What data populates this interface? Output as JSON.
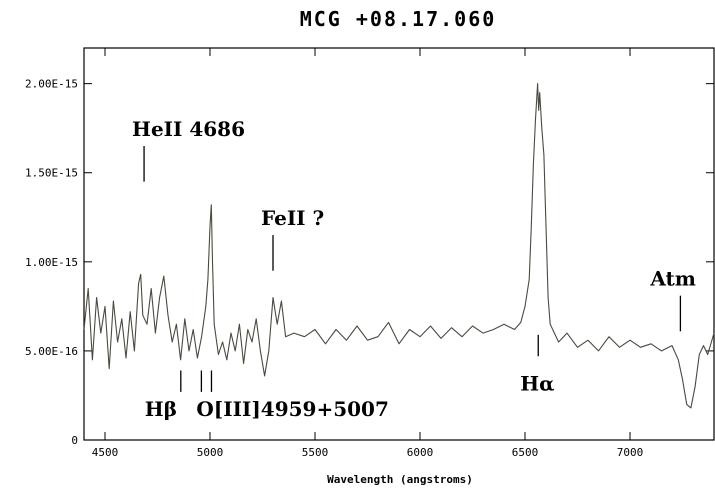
{
  "chart_data": {
    "type": "line",
    "title": "MCG +08.17.060",
    "xlabel": "Wavelength (angstroms)",
    "ylabel": "",
    "xlim": [
      4400,
      7400
    ],
    "ylim": [
      0,
      2.2e-15
    ],
    "x_ticks": [
      4500,
      5000,
      5500,
      6000,
      6500,
      7000
    ],
    "x_tick_labels": [
      "4500",
      "5000",
      "5500",
      "6000",
      "6500",
      "7000"
    ],
    "y_ticks": [
      0,
      5e-16,
      1e-15,
      1.5e-15,
      2e-15
    ],
    "y_tick_labels": [
      "0",
      "5.00E-16",
      "1.00E-15",
      "1.50E-15",
      "2.00E-15"
    ],
    "grid": false,
    "series": [
      {
        "color": "#4a4a3e",
        "x": [
          4400,
          4420,
          4440,
          4460,
          4480,
          4500,
          4520,
          4540,
          4560,
          4580,
          4600,
          4620,
          4640,
          4660,
          4670,
          4680,
          4700,
          4720,
          4740,
          4760,
          4780,
          4800,
          4820,
          4840,
          4860,
          4880,
          4900,
          4920,
          4940,
          4960,
          4980,
          4990,
          5000,
          5006,
          5012,
          5020,
          5040,
          5060,
          5080,
          5100,
          5120,
          5140,
          5160,
          5180,
          5200,
          5220,
          5240,
          5260,
          5280,
          5300,
          5320,
          5340,
          5360,
          5400,
          5450,
          5500,
          5550,
          5600,
          5650,
          5700,
          5750,
          5800,
          5850,
          5900,
          5950,
          6000,
          6050,
          6100,
          6150,
          6200,
          6250,
          6300,
          6350,
          6400,
          6450,
          6480,
          6500,
          6520,
          6530,
          6540,
          6550,
          6560,
          6565,
          6570,
          6580,
          6590,
          6600,
          6610,
          6620,
          6640,
          6660,
          6700,
          6750,
          6800,
          6850,
          6900,
          6950,
          7000,
          7050,
          7100,
          7150,
          7200,
          7230,
          7250,
          7270,
          7290,
          7310,
          7330,
          7350,
          7370,
          7400
        ],
        "y": [
          6.2e-16,
          8.5e-16,
          4.5e-16,
          8e-16,
          6e-16,
          7.5e-16,
          4e-16,
          7.8e-16,
          5.5e-16,
          6.8e-16,
          4.6e-16,
          7.2e-16,
          5e-16,
          8.8e-16,
          9.3e-16,
          7e-16,
          6.5e-16,
          8.5e-16,
          6e-16,
          8e-16,
          9.2e-16,
          7e-16,
          5.5e-16,
          6.5e-16,
          4.5e-16,
          6.8e-16,
          5e-16,
          6.2e-16,
          4.6e-16,
          5.8e-16,
          7.5e-16,
          9e-16,
          1.2e-15,
          1.32e-15,
          1e-15,
          6.5e-16,
          4.8e-16,
          5.5e-16,
          4.5e-16,
          6e-16,
          5e-16,
          6.5e-16,
          4.3e-16,
          6.2e-16,
          5.5e-16,
          6.8e-16,
          5e-16,
          3.6e-16,
          5e-16,
          8e-16,
          6.5e-16,
          7.8e-16,
          5.8e-16,
          6e-16,
          5.8e-16,
          6.2e-16,
          5.4e-16,
          6.2e-16,
          5.6e-16,
          6.4e-16,
          5.6e-16,
          5.8e-16,
          6.6e-16,
          5.4e-16,
          6.2e-16,
          5.8e-16,
          6.4e-16,
          5.7e-16,
          6.3e-16,
          5.8e-16,
          6.4e-16,
          6e-16,
          6.2e-16,
          6.5e-16,
          6.2e-16,
          6.6e-16,
          7.5e-16,
          9e-16,
          1.2e-15,
          1.55e-15,
          1.8e-15,
          2e-15,
          1.85e-15,
          1.95e-15,
          1.75e-15,
          1.6e-15,
          1.2e-15,
          8e-16,
          6.5e-16,
          6e-16,
          5.5e-16,
          6e-16,
          5.2e-16,
          5.6e-16,
          5e-16,
          5.8e-16,
          5.2e-16,
          5.6e-16,
          5.2e-16,
          5.4e-16,
          5e-16,
          5.3e-16,
          4.5e-16,
          3.4e-16,
          2e-16,
          1.8e-16,
          3e-16,
          4.8e-16,
          5.3e-16,
          4.8e-16,
          6e-16
        ]
      }
    ],
    "annotations": [
      {
        "text": "HeII 4686",
        "x": 4686,
        "line_from": 1.45e-15,
        "line_to": 1.65e-15,
        "position": "above"
      },
      {
        "text": "FeII ?",
        "x": 5300,
        "line_from": 9.5e-16,
        "line_to": 1.15e-15,
        "position": "above"
      },
      {
        "text": "Atm",
        "x": 7240,
        "line_from": 6.1e-16,
        "line_to": 8.1e-16,
        "position": "above"
      },
      {
        "text": "Hβ",
        "x": 4861,
        "line_from": 2.7e-16,
        "line_to": 3.9e-16,
        "position": "below"
      },
      {
        "text": "O[III]4959+5007",
        "x": 4959,
        "line_from": 2.7e-16,
        "line_to": 3.9e-16,
        "position": "below"
      },
      {
        "text": "",
        "x": 5007,
        "line_from": 2.7e-16,
        "line_to": 3.9e-16,
        "position": "below"
      },
      {
        "text": "Hα",
        "x": 6563,
        "line_from": 4.7e-16,
        "line_to": 5.9e-16,
        "position": "below"
      }
    ]
  }
}
